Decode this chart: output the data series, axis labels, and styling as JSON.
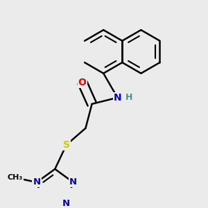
{
  "bg_color": "#ebebeb",
  "bond_color": "#000000",
  "bond_width": 1.8,
  "atom_colors": {
    "O": "#ff0000",
    "N": "#0000cc",
    "S": "#cccc00",
    "H": "#4a9090",
    "C": "#000000"
  },
  "font_size": 10,
  "fig_width": 3.0,
  "fig_height": 3.0,
  "dpi": 100
}
